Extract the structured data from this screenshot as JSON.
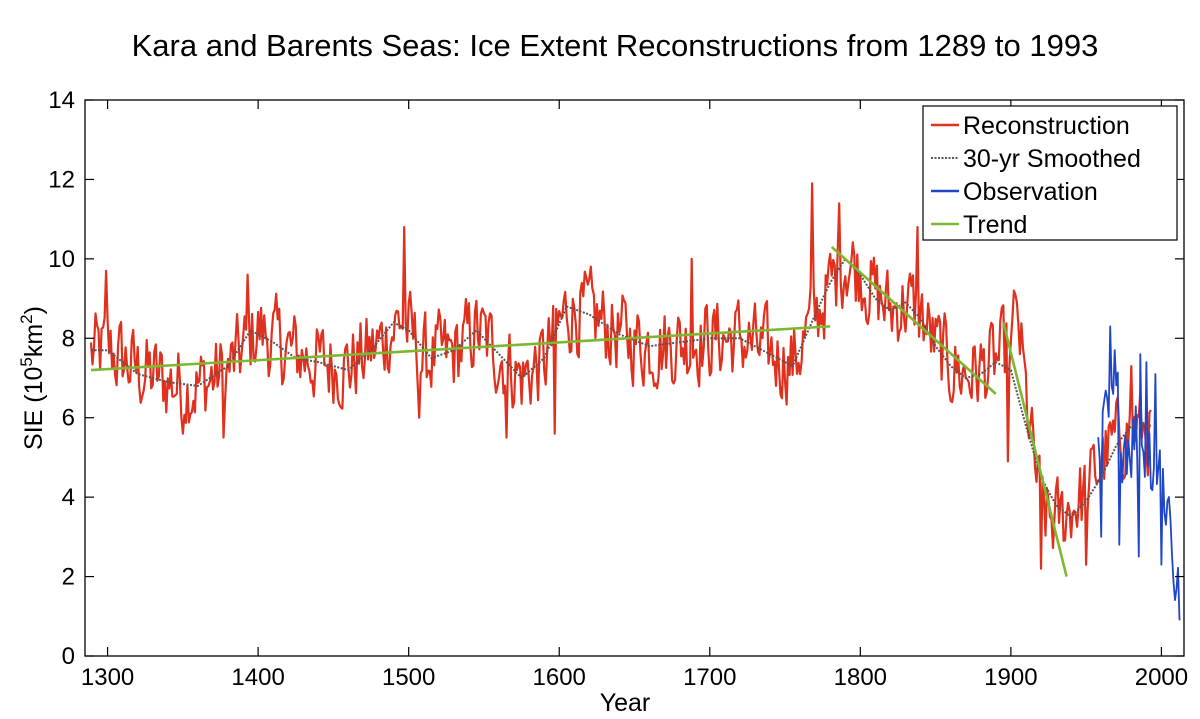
{
  "chart_data": {
    "type": "line",
    "title": "Kara and Barents Seas: Ice Extent Reconstructions from 1289 to 1993",
    "xlabel": "Year",
    "ylabel": "SIE (10^5km^2)",
    "ylabel_parts": {
      "base": "SIE (10",
      "exp1": "5",
      "mid": "km",
      "exp2": "2",
      "end": ")"
    },
    "xlim": [
      1285,
      2015
    ],
    "ylim": [
      0,
      14
    ],
    "xticks": [
      1300,
      1400,
      1500,
      1600,
      1700,
      1800,
      1900,
      2000
    ],
    "yticks": [
      0,
      2,
      4,
      6,
      8,
      10,
      12,
      14
    ],
    "grid": false,
    "legend_position": "top-right",
    "legend": [
      {
        "label": "Reconstruction",
        "color": "#e0301e",
        "style": "solid"
      },
      {
        "label": "30-yr Smoothed",
        "color": "#555555",
        "style": "dotted"
      },
      {
        "label": "Observation",
        "color": "#2046c8",
        "style": "solid"
      },
      {
        "label": "Trend",
        "color": "#7cb82f",
        "style": "solid"
      }
    ],
    "series": [
      {
        "name": "Reconstruction",
        "color": "#e0301e",
        "type": "noisy-line",
        "x_range": [
          1289,
          1993
        ],
        "baseline_x": [
          1289,
          1300,
          1320,
          1340,
          1360,
          1380,
          1400,
          1420,
          1440,
          1460,
          1480,
          1495,
          1510,
          1530,
          1545,
          1560,
          1575,
          1590,
          1605,
          1620,
          1640,
          1660,
          1680,
          1700,
          1720,
          1740,
          1755,
          1770,
          1780,
          1790,
          1800,
          1810,
          1820,
          1830,
          1840,
          1850,
          1860,
          1870,
          1880,
          1890,
          1900,
          1905,
          1910,
          1915,
          1920,
          1925,
          1930,
          1935,
          1940,
          1950,
          1960,
          1970,
          1980,
          1993
        ],
        "baseline_y": [
          7.6,
          7.7,
          7.2,
          6.9,
          6.8,
          7.2,
          8.2,
          7.7,
          7.4,
          7.3,
          7.8,
          8.5,
          7.5,
          7.6,
          8.2,
          7.6,
          7.0,
          7.4,
          8.7,
          8.6,
          8.1,
          7.8,
          7.9,
          8.0,
          8.0,
          7.6,
          7.4,
          8.5,
          9.3,
          10.0,
          9.7,
          9.1,
          8.7,
          8.9,
          8.6,
          7.8,
          7.3,
          7.1,
          7.2,
          7.4,
          7.8,
          8.4,
          6.5,
          5.0,
          3.8,
          3.4,
          3.4,
          3.5,
          3.8,
          4.1,
          4.9,
          5.4,
          5.8,
          5.6
        ],
        "amplitude": 0.95,
        "peaks": [
          [
            1299,
            9.7
          ],
          [
            1350,
            5.6
          ],
          [
            1393,
            9.6
          ],
          [
            1377,
            5.5
          ],
          [
            1497,
            10.8
          ],
          [
            1507,
            6.0
          ],
          [
            1565,
            5.5
          ],
          [
            1597,
            5.6
          ],
          [
            1688,
            10.0
          ],
          [
            1768,
            11.9
          ],
          [
            1786,
            11.4
          ],
          [
            1838,
            10.8
          ],
          [
            1898,
            4.9
          ],
          [
            1902,
            9.2
          ],
          [
            1920,
            2.2
          ],
          [
            1950,
            2.3
          ],
          [
            1980,
            7.3
          ]
        ]
      },
      {
        "name": "30-yr Smoothed",
        "color": "#555555",
        "type": "line",
        "x": [
          1289,
          1300,
          1320,
          1340,
          1360,
          1380,
          1395,
          1410,
          1425,
          1440,
          1460,
          1475,
          1490,
          1500,
          1515,
          1530,
          1545,
          1560,
          1575,
          1590,
          1605,
          1620,
          1640,
          1660,
          1680,
          1700,
          1720,
          1740,
          1755,
          1770,
          1780,
          1790,
          1800,
          1810,
          1820,
          1830,
          1840,
          1850,
          1860,
          1870,
          1880,
          1890,
          1900,
          1910,
          1920,
          1930,
          1940,
          1950,
          1960,
          1970,
          1980,
          1993
        ],
        "y": [
          7.7,
          7.7,
          7.1,
          6.9,
          6.8,
          7.3,
          8.2,
          7.9,
          7.5,
          7.4,
          7.2,
          7.7,
          8.4,
          8.2,
          7.5,
          7.7,
          8.2,
          7.6,
          7.0,
          7.5,
          8.8,
          8.6,
          8.1,
          7.8,
          7.9,
          8.0,
          8.0,
          7.6,
          7.3,
          8.6,
          9.4,
          10.0,
          9.6,
          9.0,
          8.7,
          8.9,
          8.5,
          7.8,
          7.3,
          7.0,
          7.1,
          7.4,
          7.2,
          5.8,
          4.5,
          3.8,
          3.5,
          3.9,
          4.5,
          5.3,
          5.8,
          5.8
        ]
      },
      {
        "name": "Observation",
        "color": "#2046c8",
        "type": "noisy-line",
        "x_range": [
          1958,
          2012
        ],
        "baseline_x": [
          1958,
          1965,
          1970,
          1980,
          1990,
          1998,
          2005,
          2012
        ],
        "baseline_y": [
          4.8,
          5.6,
          5.9,
          5.7,
          5.4,
          5.0,
          3.8,
          0.9
        ],
        "amplitude": 1.2,
        "peaks": [
          [
            1966,
            8.3
          ],
          [
            1969,
            7.7
          ],
          [
            1986,
            7.6
          ],
          [
            1990,
            7.4
          ],
          [
            1996,
            7.1
          ],
          [
            1960,
            3.0
          ],
          [
            1972,
            2.8
          ],
          [
            1985,
            2.5
          ],
          [
            2000,
            2.3
          ],
          [
            2012,
            0.9
          ]
        ]
      },
      {
        "name": "Trend",
        "color": "#7cb82f",
        "type": "segments",
        "segments": [
          [
            [
              1289,
              7.2
            ],
            [
              1780,
              8.3
            ]
          ],
          [
            [
              1781,
              10.3
            ],
            [
              1890,
              6.6
            ]
          ],
          [
            [
              1895,
              8.4
            ],
            [
              1937,
              2.0
            ]
          ]
        ]
      }
    ]
  }
}
